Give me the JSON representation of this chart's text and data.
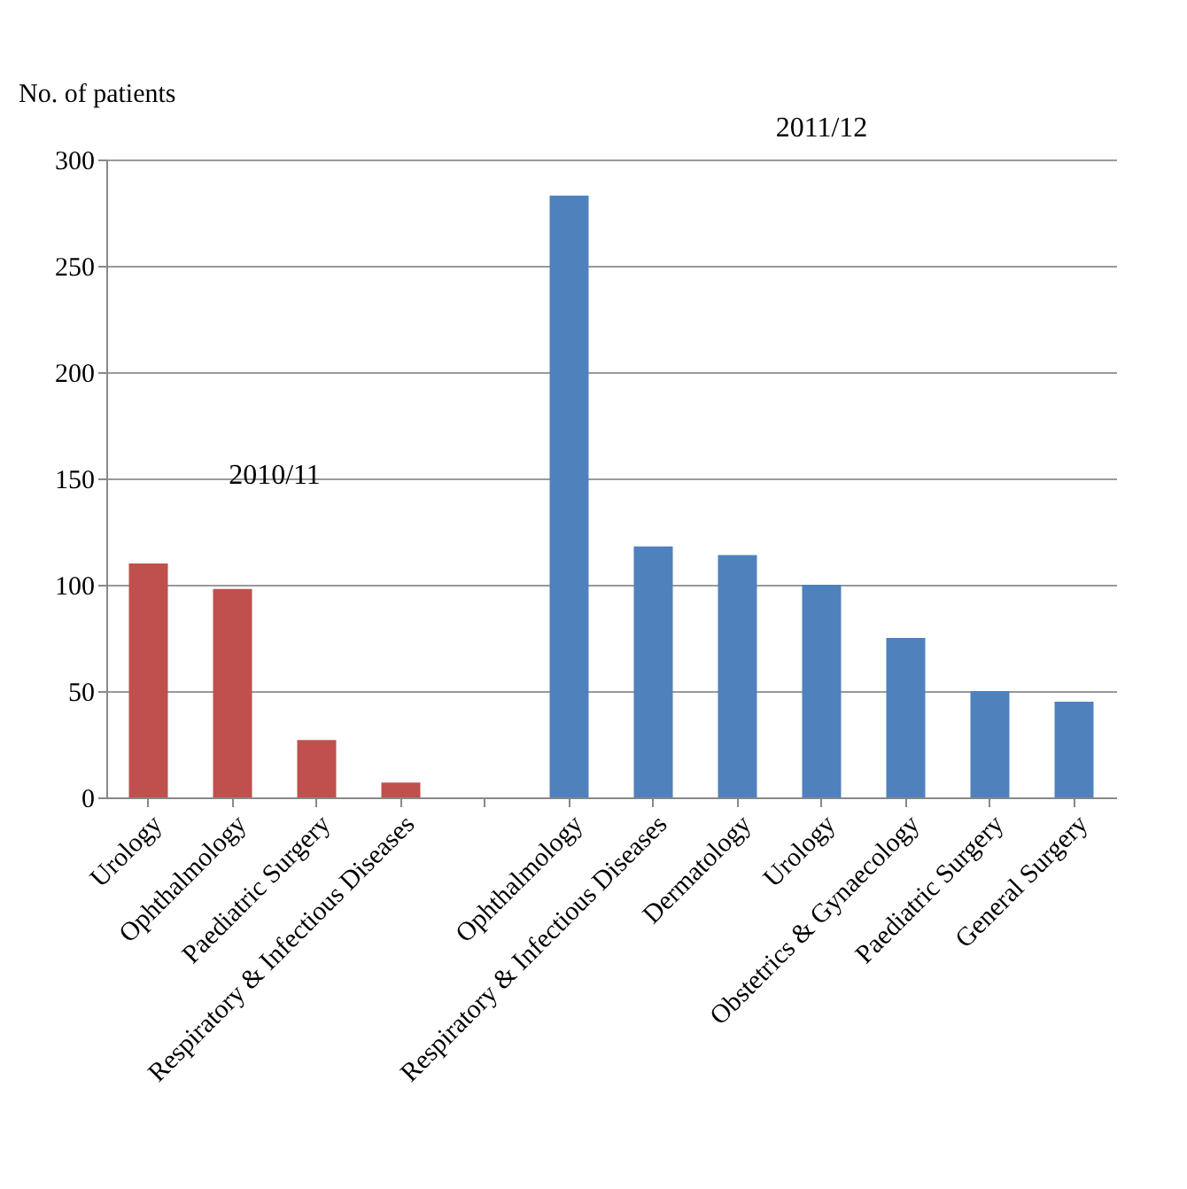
{
  "chart_data": {
    "type": "bar",
    "ylabel": "No. of patients",
    "categories": [
      "Urology",
      "Ophthalmology",
      "Paediatric Surgery",
      "Respiratory & Infectious Diseases",
      null,
      "Ophthalmology",
      "Respiratory & Infectious Diseases",
      "Dermatology",
      "Urology",
      "Obstetrics & Gynaecology",
      "Paediatric Surgery",
      "General Surgery"
    ],
    "values": [
      110,
      98,
      27,
      7,
      null,
      283,
      118,
      114,
      100,
      75,
      50,
      45
    ],
    "colors": [
      "#c0504d",
      "#c0504d",
      "#c0504d",
      "#c0504d",
      "#4f81bd",
      "#4f81bd",
      "#4f81bd",
      "#4f81bd",
      "#4f81bd",
      "#4f81bd",
      "#4f81bd",
      "#4f81bd"
    ],
    "annotations": [
      "2010/11",
      "2011/12"
    ],
    "ylim": [
      0,
      300
    ],
    "yticks": [
      0,
      50,
      100,
      150,
      200,
      250,
      300
    ],
    "grid": "y"
  }
}
